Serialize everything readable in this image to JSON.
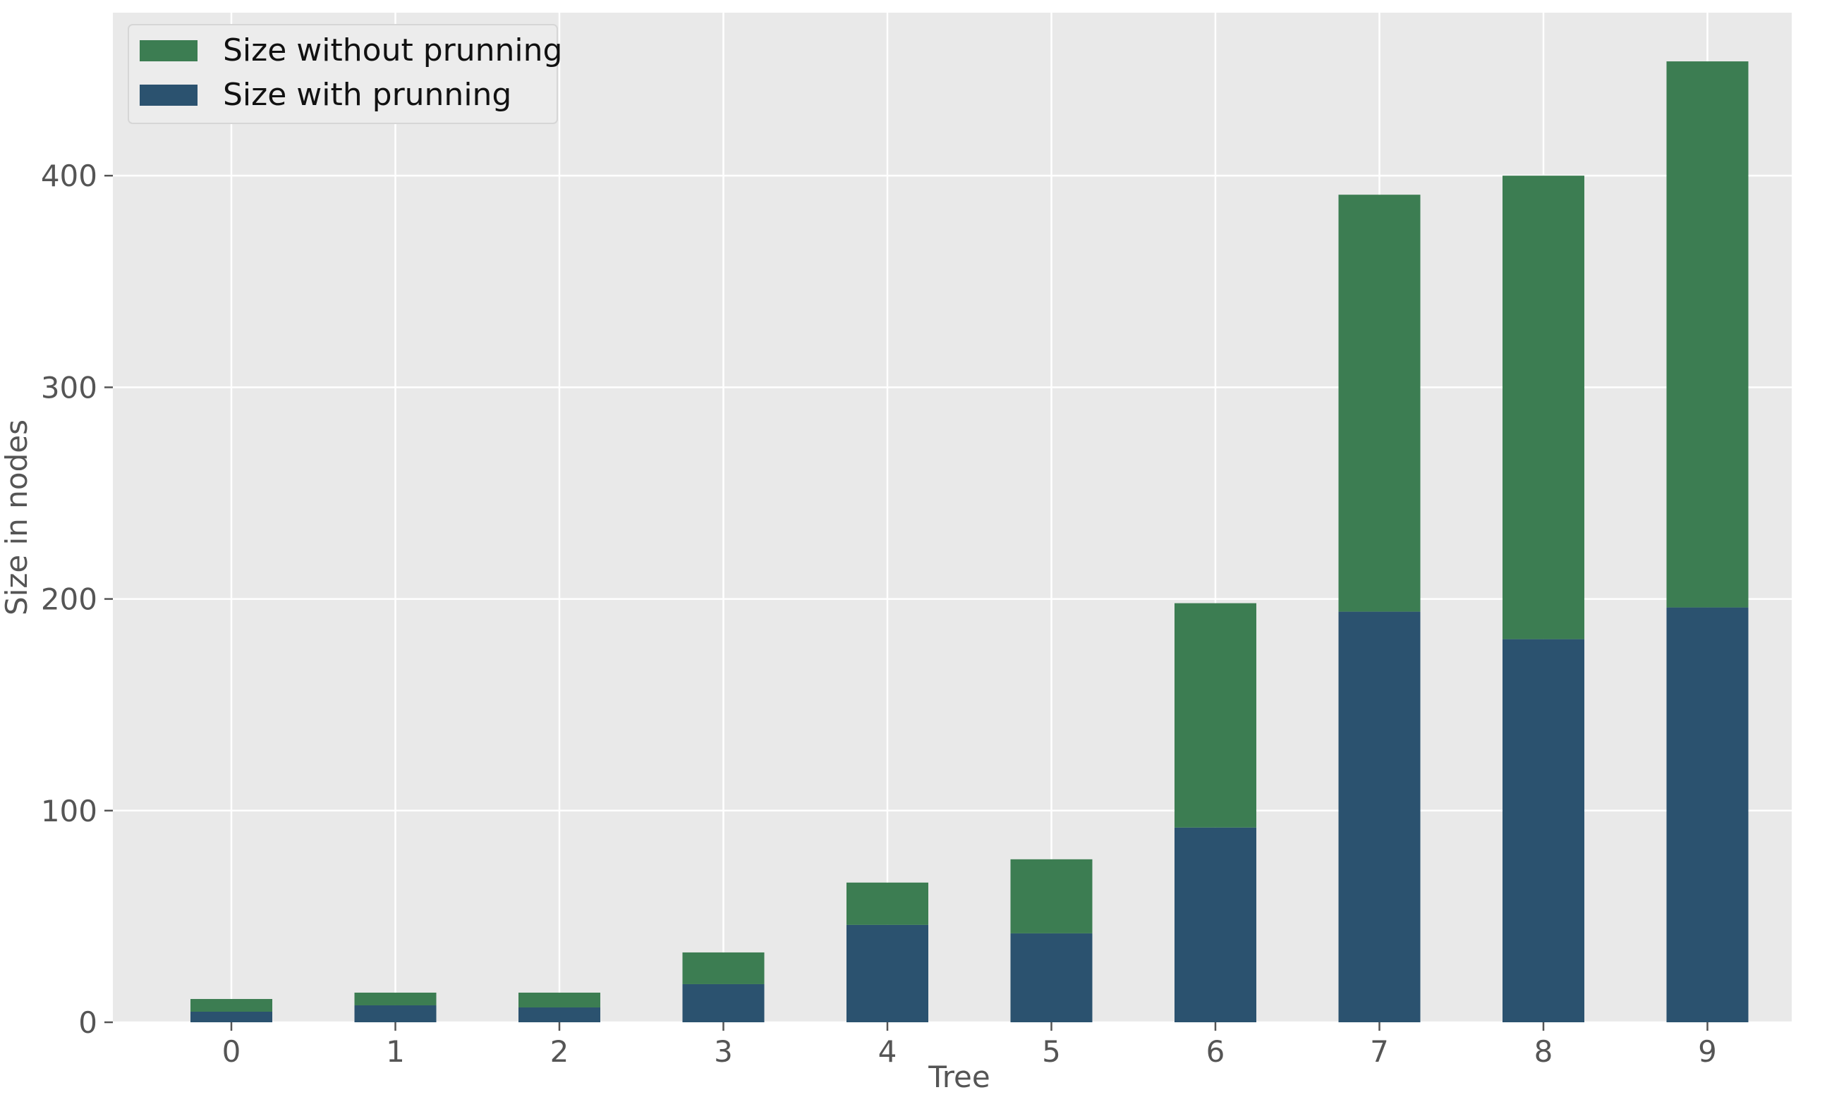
{
  "chart_data": {
    "type": "bar",
    "stacked": true,
    "categories": [
      "0",
      "1",
      "2",
      "3",
      "4",
      "5",
      "6",
      "7",
      "8",
      "9"
    ],
    "series": [
      {
        "name": "Size with prunning",
        "color": "#2b526f",
        "values": [
          5,
          8,
          7,
          18,
          46,
          42,
          92,
          194,
          181,
          196
        ]
      },
      {
        "name": "Size without prunning",
        "color": "#3c7d52",
        "values": [
          6,
          6,
          7,
          15,
          20,
          35,
          106,
          197,
          219,
          258
        ]
      }
    ],
    "totals": [
      11,
      14,
      14,
      33,
      66,
      77,
      198,
      391,
      400,
      454
    ],
    "title": "",
    "xlabel": "Tree",
    "ylabel": "Size in nodes",
    "ylim": [
      0,
      477
    ],
    "yticks": [
      0,
      100,
      200,
      300,
      400
    ],
    "grid": true,
    "legend": {
      "position": "top-left",
      "order": [
        "Size without prunning",
        "Size with prunning"
      ]
    },
    "colors": {
      "plot_background": "#e9e9e9",
      "grid": "#ffffff"
    }
  }
}
